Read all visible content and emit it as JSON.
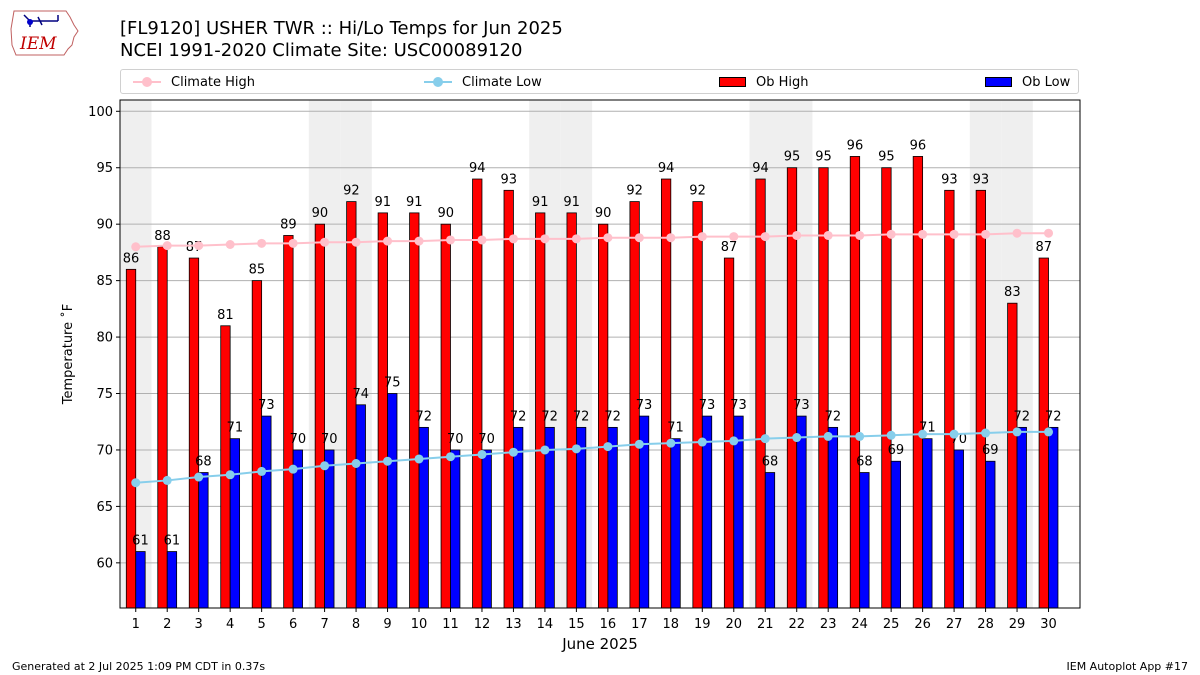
{
  "header": {
    "title_line1": "[FL9120] USHER TWR :: Hi/Lo Temps for Jun 2025",
    "title_line2": "NCEI 1991-2020 Climate Site: USC00089120",
    "logo_text": "IEM"
  },
  "legend": {
    "placement": "top",
    "entries": [
      {
        "label": "Climate High",
        "color": "#ffc0cb",
        "kind": "line"
      },
      {
        "label": "Climate Low",
        "color": "#87ceeb",
        "kind": "line"
      },
      {
        "label": "Ob High",
        "color": "#ff0000",
        "kind": "bar"
      },
      {
        "label": "Ob Low",
        "color": "#0000ff",
        "kind": "bar"
      }
    ]
  },
  "footer": {
    "left": "Generated at 2 Jul 2025 1:09 PM CDT in 0.37s",
    "right": "IEM Autoplot App #17"
  },
  "chart_data": {
    "type": "bar",
    "xlabel": "June 2025",
    "ylabel": "Temperature ˚F",
    "ylim": [
      56,
      101
    ],
    "yticks": [
      60,
      65,
      70,
      75,
      80,
      85,
      90,
      95,
      100
    ],
    "grid": true,
    "weekend_shading_days": [
      1,
      7,
      8,
      14,
      15,
      21,
      22,
      28,
      29
    ],
    "categories": [
      "1",
      "2",
      "3",
      "4",
      "5",
      "6",
      "7",
      "8",
      "9",
      "10",
      "11",
      "12",
      "13",
      "14",
      "15",
      "16",
      "17",
      "18",
      "19",
      "20",
      "21",
      "22",
      "23",
      "24",
      "25",
      "26",
      "27",
      "28",
      "29",
      "30"
    ],
    "series": [
      {
        "name": "Ob High",
        "kind": "bar",
        "color": "#ff0000",
        "values": [
          86,
          88,
          87,
          81,
          85,
          89,
          90,
          92,
          91,
          91,
          90,
          94,
          93,
          91,
          91,
          90,
          92,
          94,
          92,
          87,
          94,
          95,
          95,
          96,
          95,
          96,
          93,
          93,
          83,
          87
        ]
      },
      {
        "name": "Ob Low",
        "kind": "bar",
        "color": "#0000ff",
        "values": [
          61,
          61,
          68,
          71,
          73,
          70,
          70,
          74,
          75,
          72,
          70,
          70,
          72,
          72,
          72,
          72,
          73,
          71,
          73,
          73,
          68,
          73,
          72,
          68,
          69,
          71,
          70,
          69,
          72,
          72
        ]
      },
      {
        "name": "Climate High",
        "kind": "line",
        "color": "#ffc0cb",
        "values": [
          88.0,
          88.1,
          88.1,
          88.2,
          88.3,
          88.3,
          88.4,
          88.4,
          88.5,
          88.5,
          88.6,
          88.6,
          88.7,
          88.7,
          88.7,
          88.8,
          88.8,
          88.8,
          88.9,
          88.9,
          88.9,
          89.0,
          89.0,
          89.0,
          89.1,
          89.1,
          89.1,
          89.1,
          89.2,
          89.2
        ]
      },
      {
        "name": "Climate Low",
        "kind": "line",
        "color": "#87ceeb",
        "values": [
          67.1,
          67.3,
          67.6,
          67.8,
          68.1,
          68.3,
          68.6,
          68.8,
          69.0,
          69.2,
          69.4,
          69.6,
          69.8,
          70.0,
          70.1,
          70.3,
          70.5,
          70.6,
          70.7,
          70.8,
          71.0,
          71.1,
          71.2,
          71.2,
          71.3,
          71.4,
          71.4,
          71.5,
          71.6,
          71.6
        ]
      }
    ]
  }
}
